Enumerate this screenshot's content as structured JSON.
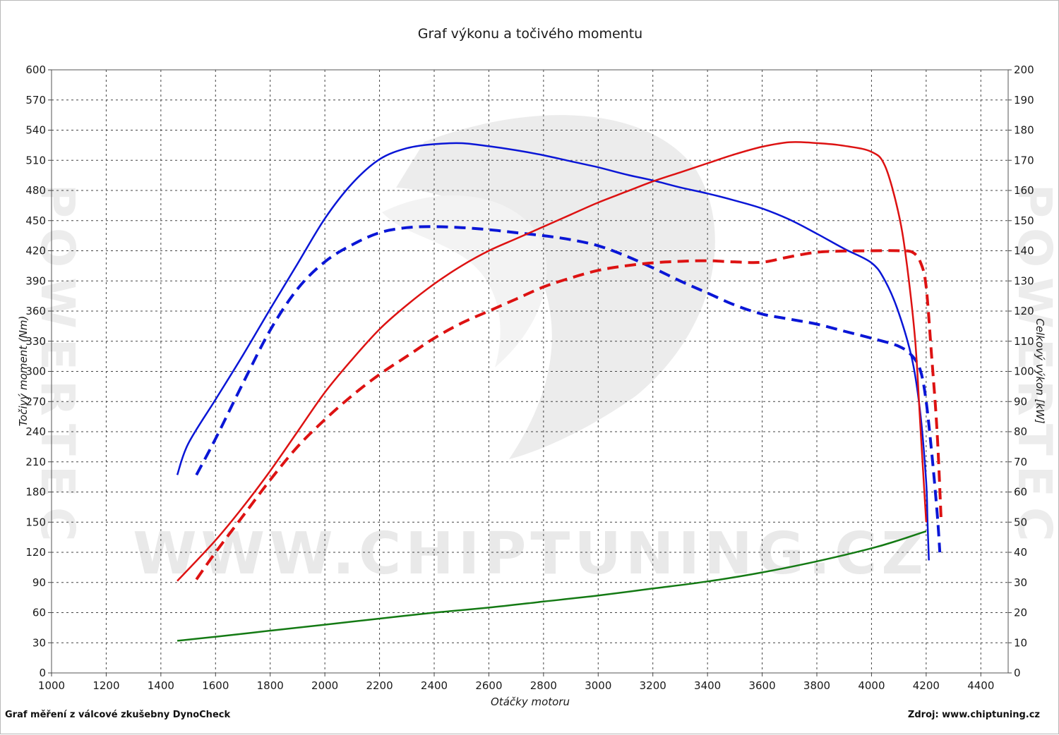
{
  "chart_data": {
    "type": "line",
    "title": "Graf výkonu a točivého momentu",
    "xlabel": "Otáčky motoru",
    "ylabel_left": "Točivý moment (Nm)",
    "ylabel_right": "Celkový výkon [kW]",
    "xlim": [
      1000,
      4500
    ],
    "ylim_left": [
      0,
      600
    ],
    "ylim_right": [
      0,
      200
    ],
    "x_ticks": [
      "1000",
      "1200",
      "1400",
      "1600",
      "1800",
      "2000",
      "2200",
      "2400",
      "2600",
      "2800",
      "3000",
      "3200",
      "3400",
      "3600",
      "3800",
      "4000",
      "4200",
      "4400"
    ],
    "y_left_ticks": [
      "0",
      "30",
      "60",
      "90",
      "120",
      "150",
      "180",
      "210",
      "240",
      "270",
      "300",
      "330",
      "360",
      "390",
      "420",
      "450",
      "480",
      "510",
      "540",
      "570",
      "600"
    ],
    "y_right_ticks": [
      "0",
      "10",
      "20",
      "30",
      "40",
      "50",
      "60",
      "70",
      "80",
      "90",
      "100",
      "110",
      "120",
      "130",
      "140",
      "150",
      "160",
      "170",
      "180",
      "190",
      "200"
    ],
    "grid": true,
    "series": [
      {
        "color": "#0a16d6",
        "dash": false,
        "axis": "left",
        "x": [
          1460,
          1500,
          1600,
          1700,
          1800,
          1900,
          2000,
          2100,
          2200,
          2300,
          2400,
          2500,
          2600,
          2700,
          2800,
          2900,
          3000,
          3100,
          3200,
          3300,
          3400,
          3500,
          3600,
          3700,
          3800,
          3900,
          4000,
          4050,
          4100,
          4150,
          4180,
          4200,
          4205,
          4210
        ],
        "y": [
          197,
          228,
          272,
          316,
          362,
          407,
          452,
          487,
          511,
          522,
          526,
          527,
          524,
          520,
          515,
          509,
          503,
          496,
          490,
          483,
          477,
          470,
          462,
          451,
          437,
          422,
          408,
          390,
          358,
          310,
          255,
          190,
          150,
          112
        ]
      },
      {
        "color": "#0a16d6",
        "dash": true,
        "axis": "left",
        "x": [
          1530,
          1600,
          1700,
          1800,
          1900,
          2000,
          2100,
          2200,
          2300,
          2400,
          2500,
          2600,
          2700,
          2800,
          2900,
          3000,
          3100,
          3200,
          3300,
          3400,
          3500,
          3600,
          3700,
          3800,
          3900,
          4000,
          4100,
          4150,
          4180,
          4200,
          4220,
          4240,
          4250
        ],
        "y": [
          197,
          233,
          288,
          341,
          382,
          409,
          426,
          438,
          443,
          444,
          443,
          441,
          438,
          435,
          431,
          425,
          415,
          403,
          390,
          378,
          366,
          357,
          352,
          347,
          340,
          333,
          325,
          315,
          300,
          270,
          220,
          160,
          120
        ]
      },
      {
        "color": "#dd1212",
        "dash": false,
        "axis": "right",
        "x": [
          1460,
          1600,
          1700,
          1800,
          1900,
          2000,
          2100,
          2200,
          2300,
          2400,
          2500,
          2600,
          2700,
          2800,
          2900,
          3000,
          3100,
          3200,
          3300,
          3400,
          3500,
          3600,
          3700,
          3800,
          3900,
          4000,
          4050,
          4100,
          4130,
          4160,
          4180,
          4200
        ],
        "y": [
          30.5,
          44,
          55,
          67,
          80,
          93,
          104,
          114,
          122,
          129,
          135,
          140,
          144,
          148,
          152,
          156,
          159.5,
          163,
          166,
          169,
          172,
          174.5,
          176,
          175.7,
          174.8,
          172.8,
          168,
          152,
          135,
          110,
          80,
          50
        ]
      },
      {
        "color": "#dd1212",
        "dash": true,
        "axis": "right",
        "x": [
          1530,
          1600,
          1700,
          1800,
          1900,
          2000,
          2100,
          2200,
          2300,
          2400,
          2500,
          2600,
          2700,
          2800,
          2900,
          3000,
          3100,
          3200,
          3300,
          3400,
          3500,
          3600,
          3700,
          3800,
          3900,
          4000,
          4100,
          4150,
          4180,
          4200,
          4220,
          4240,
          4255
        ],
        "y": [
          31,
          40,
          52,
          64,
          75,
          84,
          92,
          99,
          105,
          111,
          116,
          120,
          124,
          128,
          131,
          133.5,
          135,
          136,
          136.5,
          136.7,
          136.3,
          136.2,
          138,
          139.5,
          139.9,
          140,
          140,
          139.5,
          136,
          128,
          105,
          80,
          50
        ]
      },
      {
        "color": "#147a14",
        "dash": false,
        "axis": "left",
        "x": [
          1460,
          1600,
          1800,
          2000,
          2200,
          2400,
          2600,
          2800,
          3000,
          3200,
          3400,
          3600,
          3800,
          4000,
          4100,
          4200
        ],
        "y": [
          32,
          36,
          42,
          48,
          54,
          60,
          65,
          71,
          77,
          84,
          91,
          100,
          111,
          124,
          132,
          141
        ]
      }
    ]
  },
  "watermark": {
    "text": "WWW.CHIPTUNING.CZ",
    "side_text": "POWERTEC"
  },
  "footer": {
    "left": "Graf měření z válcové zkušebny DynoCheck",
    "right": "Zdroj: www.chiptuning.cz"
  }
}
